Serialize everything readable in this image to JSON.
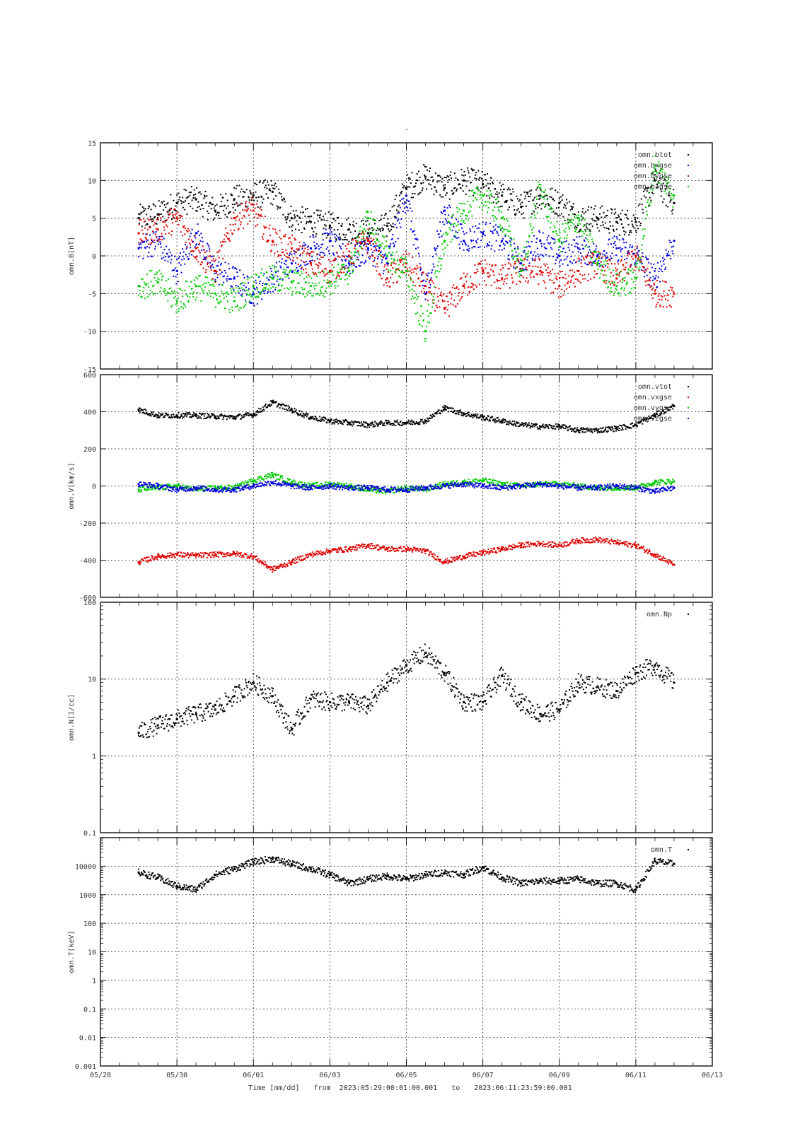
{
  "figure": {
    "title": "-",
    "xlabel_time": "Time [mm/dd]",
    "xlabel_from": "from",
    "xlabel_start": "2023:05:29:00:01:00.001",
    "xlabel_to": "to",
    "xlabel_end": "2023:06:11:23:59:00.001"
  },
  "chart_data": [
    {
      "type": "scatter",
      "ylabel": "omn.B[nT]",
      "yscale": "linear",
      "ylim": [
        -15,
        15
      ],
      "yticks": [
        -15,
        -10,
        -5,
        0,
        5,
        10,
        15
      ],
      "ytick_labels": [
        "-15",
        "-10",
        "-5",
        "0",
        "5",
        "10",
        "15"
      ],
      "xlim_days": [
        0,
        16
      ],
      "grid": true,
      "legend_position": "top-right",
      "series": [
        {
          "name": "omn.btot",
          "color": "#000000",
          "x": [
            1.0,
            1.5,
            2.0,
            2.5,
            3.0,
            3.5,
            4.0,
            4.5,
            5.0,
            5.5,
            6.0,
            6.5,
            7.0,
            7.5,
            8.0,
            8.5,
            9.0,
            9.5,
            10.0,
            10.5,
            11.0,
            11.5,
            12.0,
            12.5,
            13.0,
            13.5,
            14.0,
            14.5,
            15.0
          ],
          "y": [
            5.0,
            5.5,
            7.0,
            7.5,
            6.0,
            7.5,
            8.0,
            8.5,
            5.0,
            4.5,
            4.0,
            3.5,
            3.0,
            4.0,
            9.0,
            10.5,
            9.0,
            10.0,
            9.5,
            8.0,
            6.5,
            8.0,
            7.0,
            5.0,
            5.0,
            4.5,
            4.5,
            10.0,
            7.0
          ]
        },
        {
          "name": "omn.bxgse",
          "color": "#0000dd",
          "x": [
            1.0,
            1.5,
            2.0,
            2.5,
            3.0,
            3.5,
            4.0,
            4.5,
            5.0,
            5.5,
            6.0,
            6.5,
            7.0,
            7.5,
            8.0,
            8.5,
            9.0,
            9.5,
            10.0,
            10.5,
            11.0,
            11.5,
            12.0,
            12.5,
            13.0,
            13.5,
            14.0,
            14.5,
            15.0
          ],
          "y": [
            1.0,
            2.0,
            -2.0,
            3.0,
            -2.0,
            -3.0,
            -5.0,
            -3.0,
            -1.0,
            1.0,
            2.0,
            -1.0,
            1.0,
            -1.0,
            8.0,
            -5.0,
            6.0,
            2.0,
            3.0,
            2.0,
            -1.0,
            2.0,
            0.0,
            1.0,
            0.0,
            1.0,
            0.0,
            -3.0,
            2.0
          ]
        },
        {
          "name": "omn.bygse",
          "color": "#dd0000",
          "x": [
            1.0,
            1.5,
            2.0,
            2.5,
            3.0,
            3.5,
            4.0,
            4.5,
            5.0,
            5.5,
            6.0,
            6.5,
            7.0,
            7.5,
            8.0,
            8.5,
            9.0,
            9.5,
            10.0,
            10.5,
            11.0,
            11.5,
            12.0,
            12.5,
            13.0,
            13.5,
            14.0,
            14.5,
            15.0
          ],
          "y": [
            3.0,
            3.5,
            5.0,
            1.0,
            -2.0,
            5.0,
            6.0,
            2.0,
            1.0,
            -1.0,
            -2.0,
            0.0,
            2.0,
            -3.0,
            -1.0,
            -4.0,
            -7.0,
            -4.0,
            -2.0,
            -3.0,
            -2.0,
            -2.0,
            -4.0,
            -2.0,
            -1.0,
            -3.0,
            0.0,
            -5.0,
            -5.0
          ]
        },
        {
          "name": "omn.bzgse",
          "color": "#00cc00",
          "x": [
            1.0,
            1.5,
            2.0,
            2.5,
            3.0,
            3.5,
            4.0,
            4.5,
            5.0,
            5.5,
            6.0,
            6.5,
            7.0,
            7.5,
            8.0,
            8.5,
            9.0,
            9.5,
            10.0,
            10.5,
            11.0,
            11.5,
            12.0,
            12.5,
            13.0,
            13.5,
            14.0,
            14.5,
            15.0
          ],
          "y": [
            -4.0,
            -3.5,
            -6.0,
            -4.0,
            -5.0,
            -6.0,
            -4.0,
            -3.0,
            -3.5,
            -4.0,
            -3.5,
            -2.0,
            5.0,
            0.0,
            -2.0,
            -10.0,
            2.0,
            6.0,
            8.0,
            5.0,
            -2.0,
            9.0,
            2.0,
            5.0,
            -1.0,
            -4.0,
            -3.0,
            12.0,
            8.0
          ]
        }
      ]
    },
    {
      "type": "scatter",
      "ylabel": "omn.V[km/s]",
      "yscale": "linear",
      "ylim": [
        -600,
        600
      ],
      "yticks": [
        -600,
        -400,
        -200,
        0,
        200,
        400,
        600
      ],
      "ytick_labels": [
        "-600",
        "-400",
        "-200",
        "0",
        "200",
        "400",
        "600"
      ],
      "xlim_days": [
        0,
        16
      ],
      "grid": true,
      "legend_position": "top-right",
      "series": [
        {
          "name": "omn.vtot",
          "color": "#000000",
          "x": [
            1.0,
            1.5,
            2.0,
            2.5,
            3.0,
            3.5,
            4.0,
            4.5,
            5.0,
            5.5,
            6.0,
            6.5,
            7.0,
            7.5,
            8.0,
            8.5,
            9.0,
            9.5,
            10.0,
            10.5,
            11.0,
            11.5,
            12.0,
            12.5,
            13.0,
            13.5,
            14.0,
            14.5,
            15.0
          ],
          "y": [
            410,
            380,
            380,
            380,
            375,
            370,
            385,
            450,
            410,
            370,
            350,
            340,
            330,
            340,
            340,
            350,
            420,
            390,
            370,
            350,
            330,
            320,
            320,
            300,
            300,
            310,
            330,
            380,
            430
          ]
        },
        {
          "name": "omn.vxgse",
          "color": "#dd0000",
          "x": [
            1.0,
            1.5,
            2.0,
            2.5,
            3.0,
            3.5,
            4.0,
            4.5,
            5.0,
            5.5,
            6.0,
            6.5,
            7.0,
            7.5,
            8.0,
            8.5,
            9.0,
            9.5,
            10.0,
            10.5,
            11.0,
            11.5,
            12.0,
            12.5,
            13.0,
            13.5,
            14.0,
            14.5,
            15.0
          ],
          "y": [
            -410,
            -380,
            -370,
            -375,
            -370,
            -365,
            -380,
            -450,
            -410,
            -370,
            -350,
            -340,
            -320,
            -340,
            -340,
            -350,
            -410,
            -380,
            -360,
            -340,
            -320,
            -310,
            -320,
            -295,
            -290,
            -305,
            -320,
            -370,
            -425
          ]
        },
        {
          "name": "omn.vygse",
          "color": "#00cc00",
          "x": [
            1.0,
            1.5,
            2.0,
            2.5,
            3.0,
            3.5,
            4.0,
            4.5,
            5.0,
            5.5,
            6.0,
            6.5,
            7.0,
            7.5,
            8.0,
            8.5,
            9.0,
            9.5,
            10.0,
            10.5,
            11.0,
            11.5,
            12.0,
            12.5,
            13.0,
            13.5,
            14.0,
            14.5,
            15.0
          ],
          "y": [
            -20,
            -10,
            0,
            -20,
            -10,
            -10,
            30,
            60,
            20,
            0,
            10,
            0,
            -20,
            -30,
            -10,
            -20,
            10,
            20,
            30,
            10,
            0,
            10,
            10,
            0,
            -10,
            -10,
            -10,
            20,
            25
          ]
        },
        {
          "name": "omn.vzgse",
          "color": "#0000dd",
          "x": [
            1.0,
            1.5,
            2.0,
            2.5,
            3.0,
            3.5,
            4.0,
            4.5,
            5.0,
            5.5,
            6.0,
            6.5,
            7.0,
            7.5,
            8.0,
            8.5,
            9.0,
            9.5,
            10.0,
            10.5,
            11.0,
            11.5,
            12.0,
            12.5,
            13.0,
            13.5,
            14.0,
            14.5,
            15.0
          ],
          "y": [
            10,
            0,
            -20,
            -10,
            -20,
            -20,
            0,
            20,
            0,
            -10,
            0,
            -10,
            -10,
            -20,
            -20,
            -10,
            0,
            10,
            0,
            -10,
            0,
            10,
            0,
            -10,
            -10,
            0,
            -10,
            -30,
            -10
          ]
        }
      ]
    },
    {
      "type": "scatter",
      "ylabel": "omn.N[1/cc]",
      "yscale": "log",
      "ylim": [
        0.1,
        100
      ],
      "yticks": [
        0.1,
        1,
        10,
        100
      ],
      "ytick_labels": [
        "0.1",
        "1",
        "10",
        "100"
      ],
      "xlim_days": [
        0,
        16
      ],
      "grid": true,
      "legend_position": "top-right",
      "series": [
        {
          "name": "omn.Np",
          "color": "#000000",
          "x": [
            1.0,
            1.5,
            2.0,
            2.5,
            3.0,
            3.5,
            4.0,
            4.5,
            5.0,
            5.5,
            6.0,
            6.5,
            7.0,
            7.5,
            8.0,
            8.5,
            9.0,
            9.5,
            10.0,
            10.5,
            11.0,
            11.5,
            12.0,
            12.5,
            13.0,
            13.5,
            14.0,
            14.5,
            15.0
          ],
          "y": [
            2.0,
            2.5,
            3.0,
            3.5,
            4.0,
            6.0,
            9.0,
            6.0,
            2.2,
            5.5,
            5.0,
            5.0,
            4.5,
            9.0,
            15.0,
            22.0,
            12.0,
            5.0,
            5.0,
            11.0,
            5.0,
            3.5,
            4.0,
            9.0,
            8.0,
            7.0,
            12.0,
            15.0,
            9.0
          ]
        }
      ]
    },
    {
      "type": "scatter",
      "ylabel": "omn.T[keV]",
      "yscale": "log",
      "ylim": [
        0.001,
        100000
      ],
      "yticks": [
        0.001,
        0.01,
        0.1,
        1,
        10,
        100,
        1000,
        10000
      ],
      "ytick_labels": [
        "0.001",
        "0.01",
        "0.1",
        "1",
        "10",
        "100",
        "1000",
        "10000"
      ],
      "xlim_days": [
        0,
        16
      ],
      "grid": true,
      "legend_position": "top-right",
      "series": [
        {
          "name": "omn.T",
          "color": "#000000",
          "x": [
            1.0,
            1.5,
            2.0,
            2.5,
            3.0,
            3.5,
            4.0,
            4.5,
            5.0,
            5.5,
            6.0,
            6.5,
            7.0,
            7.5,
            8.0,
            8.5,
            9.0,
            9.5,
            10.0,
            10.5,
            11.0,
            11.5,
            12.0,
            12.5,
            13.0,
            13.5,
            14.0,
            14.5,
            15.0
          ],
          "y": [
            6000,
            4000,
            2000,
            1500,
            5000,
            8000,
            14000,
            18000,
            12000,
            8000,
            5000,
            2500,
            3500,
            4500,
            3500,
            5000,
            6000,
            5000,
            9000,
            4000,
            2500,
            3000,
            3000,
            3500,
            2500,
            2500,
            1500,
            15000,
            12000
          ]
        }
      ]
    }
  ],
  "xaxis": {
    "tick_labels": [
      "05/28",
      "05/30",
      "06/01",
      "06/03",
      "06/05",
      "06/07",
      "06/09",
      "06/11",
      "06/13"
    ],
    "tick_days": [
      0,
      2,
      4,
      6,
      8,
      10,
      12,
      14,
      16
    ]
  }
}
